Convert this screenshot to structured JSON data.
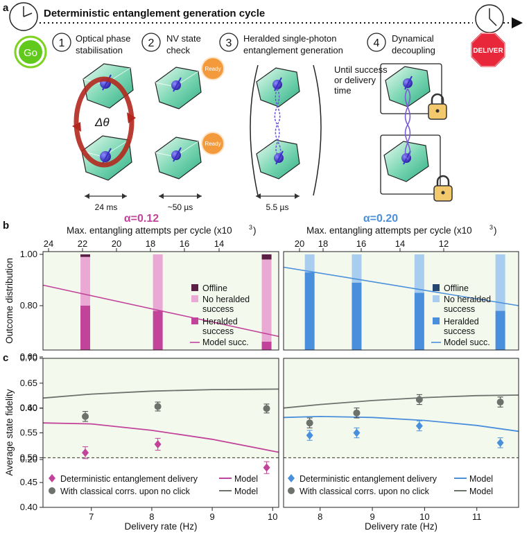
{
  "panel_a": {
    "letter": "a",
    "title": "Deterministic entanglement generation cycle",
    "go_label": "Go",
    "deliver_label": "DELIVER",
    "steps": [
      {
        "num": "1",
        "line1": "Optical phase",
        "line2": "stabilisation"
      },
      {
        "num": "2",
        "line1": "NV state",
        "line2": "check"
      },
      {
        "num": "3",
        "line1": "Heralded single-photon",
        "line2": "entanglement generation"
      },
      {
        "num": "4",
        "line1": "Dynamical",
        "line2": "decoupling"
      }
    ],
    "ready_label": "Ready",
    "delta_theta": "Δθ",
    "until_text": [
      "Until success",
      "or delivery",
      "time"
    ],
    "durations": [
      "24 ms",
      "~50 µs",
      "5.5 µs"
    ]
  },
  "panel_b_letter": "b",
  "panel_c_letter": "c",
  "colors": {
    "magenta": "#c2449a",
    "magenta_light": "#e9a9d4",
    "magenta_dark": "#5a2046",
    "blue": "#4a8fdb",
    "blue_light": "#a9cdee",
    "blue_dark": "#24466f",
    "gray": "#6d726d",
    "bg_green": "#f4f9ee"
  },
  "chart_data": [
    {
      "type": "bar",
      "panel": "b-left",
      "title": "α=0.12",
      "top_axis_label": "Max. entangling attempts per cycle (x10",
      "top_axis_sup": "3",
      "top_axis_close": ")",
      "top_ticks": [
        "24",
        "22",
        "20",
        "18",
        "16",
        "14"
      ],
      "ylabel": "Outcome distribution",
      "yticks": [
        "1.00",
        "0.80",
        "0.60",
        "0.40",
        "0.20"
      ],
      "xlim": [
        6.2,
        10.1
      ],
      "bars": [
        {
          "x": 6.9,
          "heralded": 0.8,
          "no_heralded": 0.19,
          "offline": 0.01
        },
        {
          "x": 8.1,
          "heralded": 0.78,
          "no_heralded": 0.22,
          "offline": 0.0
        },
        {
          "x": 9.9,
          "heralded": 0.66,
          "no_heralded": 0.32,
          "offline": 0.02
        }
      ],
      "model_line": {
        "x": [
          6.2,
          10.1
        ],
        "y": [
          0.88,
          0.68
        ]
      },
      "legend": [
        "Offline",
        "No heralded",
        "success",
        "Heralded",
        "success",
        "Model succ."
      ]
    },
    {
      "type": "bar",
      "panel": "b-right",
      "title": "α=0.20",
      "top_axis_label": "Max. entangling attempts per cycle (x10",
      "top_axis_sup": "3",
      "top_axis_close": ")",
      "top_ticks": [
        "20",
        "18",
        "16",
        "14",
        "12"
      ],
      "xlim": [
        7.3,
        11.8
      ],
      "bars": [
        {
          "x": 7.8,
          "heralded": 0.93,
          "no_heralded": 0.07,
          "offline": 0.0
        },
        {
          "x": 8.7,
          "heralded": 0.89,
          "no_heralded": 0.11,
          "offline": 0.0
        },
        {
          "x": 9.9,
          "heralded": 0.85,
          "no_heralded": 0.15,
          "offline": 0.0
        },
        {
          "x": 11.45,
          "heralded": 0.78,
          "no_heralded": 0.22,
          "offline": 0.0
        }
      ],
      "model_line": {
        "x": [
          7.3,
          11.8
        ],
        "y": [
          0.95,
          0.8
        ]
      },
      "legend": [
        "Offline",
        "No heralded",
        "success",
        "Heralded",
        "success",
        "Model succ."
      ]
    },
    {
      "type": "scatter",
      "panel": "c-left",
      "ylabel": "Average state fidelity",
      "xlabel": "Delivery rate (Hz)",
      "xticks": [
        "7",
        "8",
        "9",
        "10"
      ],
      "yticks": [
        "0.70",
        "0.65",
        "0.60",
        "0.55",
        "0.50",
        "0.45",
        "0.40"
      ],
      "xlim": [
        6.2,
        10.1
      ],
      "ylim": [
        0.4,
        0.7
      ],
      "deterministic": [
        {
          "x": 6.9,
          "y": 0.51,
          "err": 0.012
        },
        {
          "x": 8.1,
          "y": 0.527,
          "err": 0.012
        },
        {
          "x": 9.9,
          "y": 0.48,
          "err": 0.012
        }
      ],
      "classical": [
        {
          "x": 6.9,
          "y": 0.583,
          "err": 0.01
        },
        {
          "x": 8.1,
          "y": 0.603,
          "err": 0.009
        },
        {
          "x": 9.9,
          "y": 0.599,
          "err": 0.009
        }
      ],
      "model_det": {
        "x": [
          6.2,
          7.0,
          8.0,
          9.0,
          10.1
        ],
        "y": [
          0.57,
          0.568,
          0.555,
          0.537,
          0.511
        ]
      },
      "model_cls": {
        "x": [
          6.2,
          7.0,
          8.0,
          9.0,
          10.1
        ],
        "y": [
          0.62,
          0.628,
          0.634,
          0.637,
          0.638
        ]
      },
      "threshold": 0.5,
      "legend": [
        "Deterministic entanglement delivery",
        "With classical corrs. upon no click",
        "Model",
        "Model"
      ]
    },
    {
      "type": "scatter",
      "panel": "c-right",
      "xlabel": "Delivery rate (Hz)",
      "xticks": [
        "8",
        "9",
        "10",
        "11"
      ],
      "xlim": [
        7.3,
        11.8
      ],
      "ylim": [
        0.4,
        0.7
      ],
      "deterministic": [
        {
          "x": 7.8,
          "y": 0.545,
          "err": 0.01
        },
        {
          "x": 8.7,
          "y": 0.55,
          "err": 0.01
        },
        {
          "x": 9.9,
          "y": 0.564,
          "err": 0.01
        },
        {
          "x": 11.45,
          "y": 0.53,
          "err": 0.01
        }
      ],
      "classical": [
        {
          "x": 7.8,
          "y": 0.57,
          "err": 0.01
        },
        {
          "x": 8.7,
          "y": 0.59,
          "err": 0.01
        },
        {
          "x": 9.9,
          "y": 0.617,
          "err": 0.01
        },
        {
          "x": 11.45,
          "y": 0.612,
          "err": 0.01
        }
      ],
      "model_det": {
        "x": [
          7.3,
          8.0,
          9.0,
          10.0,
          11.0,
          11.8
        ],
        "y": [
          0.581,
          0.583,
          0.581,
          0.575,
          0.565,
          0.553
        ]
      },
      "model_cls": {
        "x": [
          7.3,
          8.0,
          9.0,
          10.0,
          11.0,
          11.8
        ],
        "y": [
          0.6,
          0.607,
          0.615,
          0.621,
          0.625,
          0.626
        ]
      },
      "threshold": 0.5,
      "legend": [
        "Deterministic entanglement delivery",
        "With classical corrs. upon no click",
        "Model",
        "Model"
      ]
    }
  ]
}
